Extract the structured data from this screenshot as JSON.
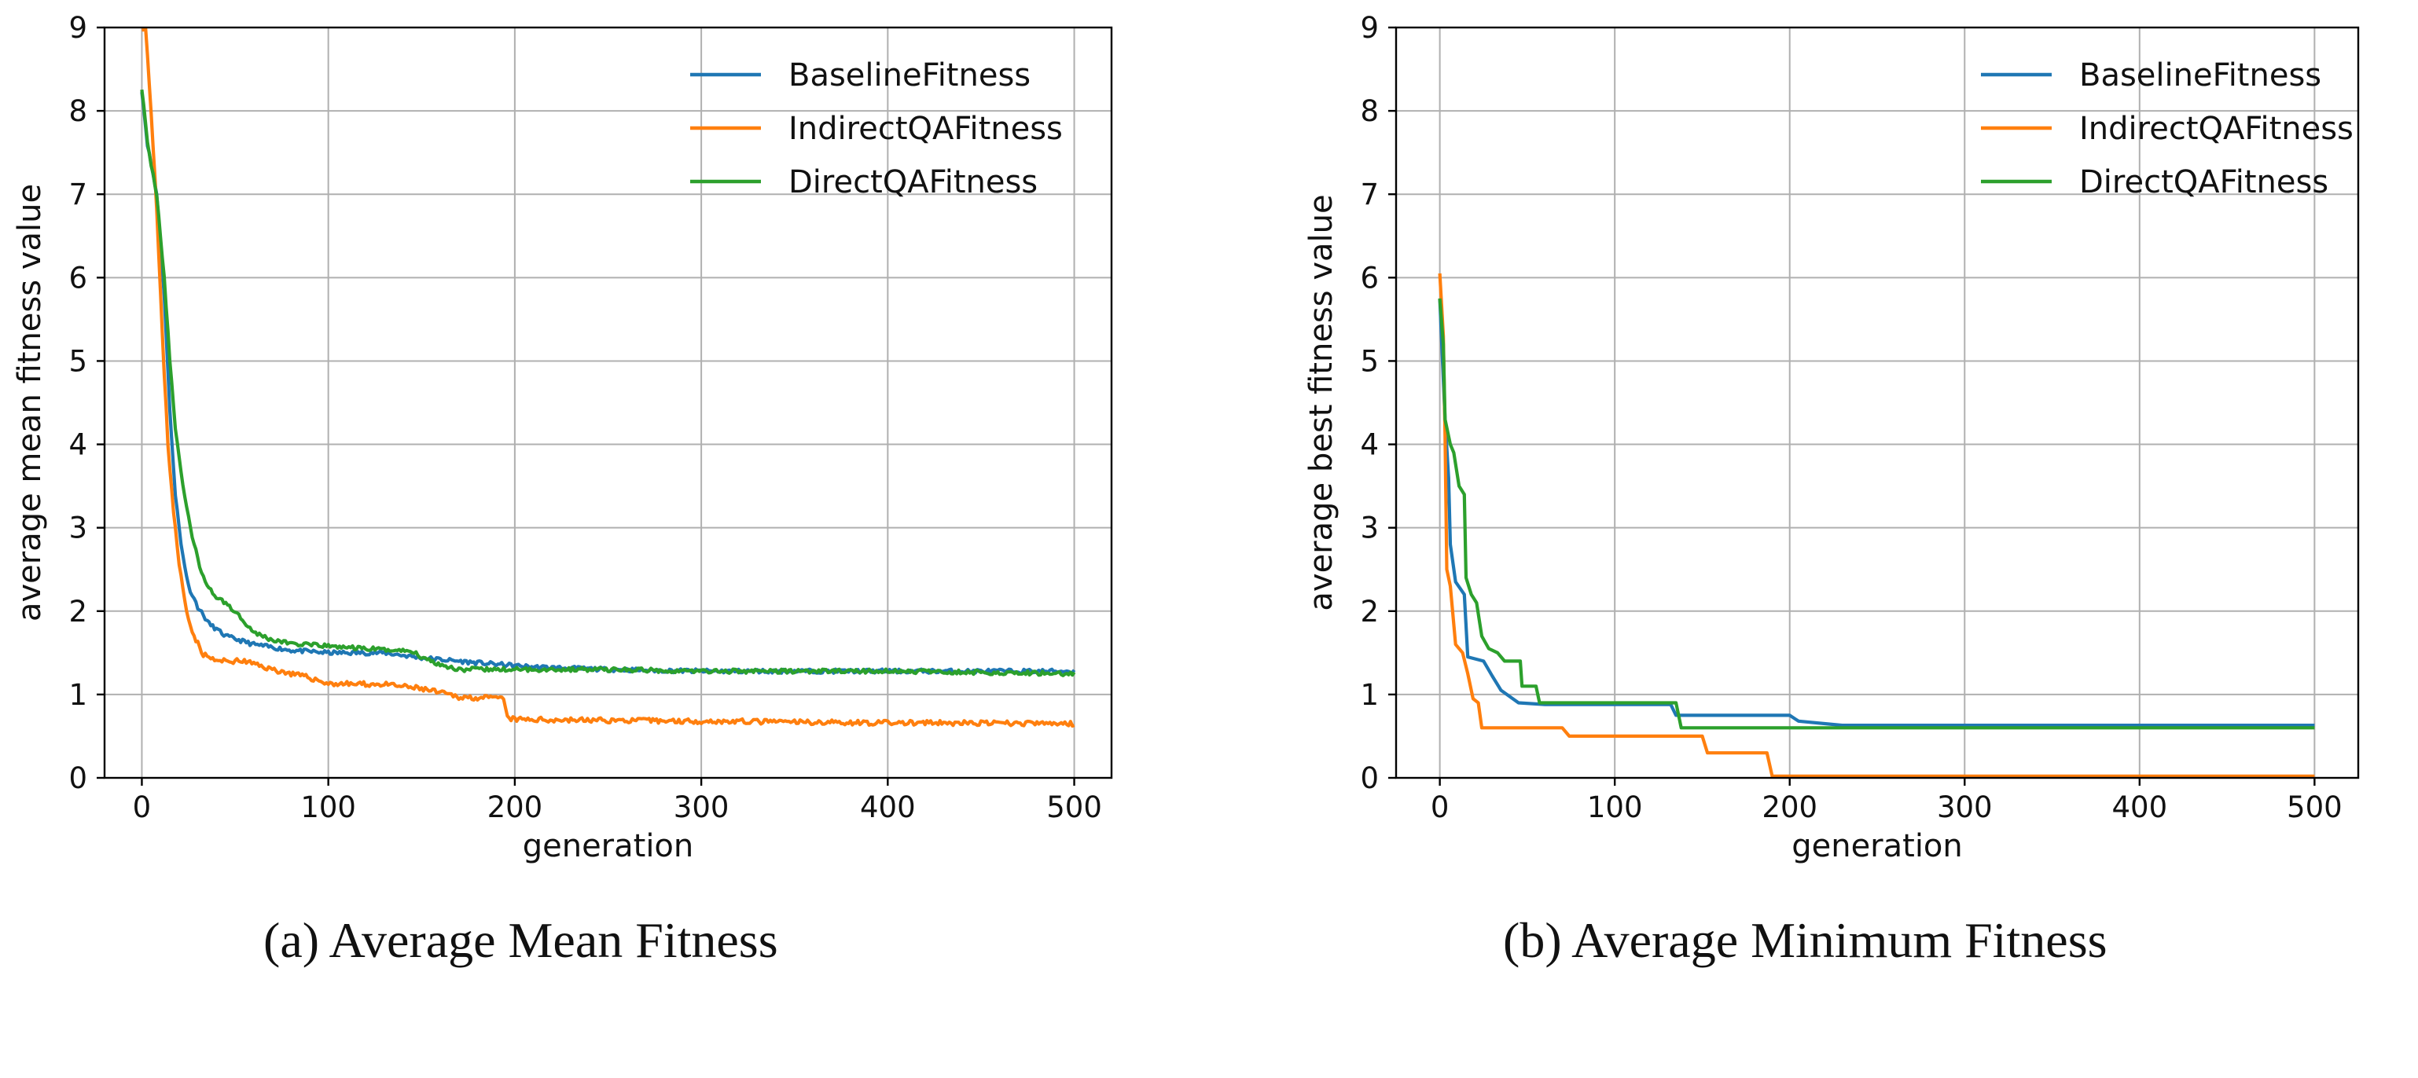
{
  "colors": {
    "baseline": "#1f77b4",
    "indirect": "#ff7f0e",
    "direct": "#2ca02c",
    "grid": "#b0b0b0",
    "axis": "#000000"
  },
  "captions": {
    "a": "(a) Average Mean Fitness",
    "b": "(b) Average Minimum Fitness"
  },
  "chart_data": [
    {
      "type": "line",
      "title": "",
      "xlabel": "generation",
      "ylabel": "average mean fitness value",
      "xlim": [
        -20,
        520
      ],
      "ylim": [
        0,
        9
      ],
      "xticks": [
        0,
        100,
        200,
        300,
        400,
        500
      ],
      "yticks": [
        0,
        1,
        2,
        3,
        4,
        5,
        6,
        7,
        8,
        9
      ],
      "grid": true,
      "legend_position": "upper-right",
      "series": [
        {
          "name": "BaselineFitness",
          "color": "#1f77b4",
          "noise": 0.025,
          "seed": 11,
          "points": [
            [
              0,
              8.25
            ],
            [
              3,
              7.6
            ],
            [
              8,
              7.0
            ],
            [
              12,
              5.8
            ],
            [
              15,
              4.4
            ],
            [
              18,
              3.4
            ],
            [
              21,
              2.8
            ],
            [
              25,
              2.3
            ],
            [
              30,
              2.05
            ],
            [
              36,
              1.85
            ],
            [
              45,
              1.7
            ],
            [
              60,
              1.6
            ],
            [
              80,
              1.53
            ],
            [
              100,
              1.5
            ],
            [
              130,
              1.5
            ],
            [
              150,
              1.44
            ],
            [
              180,
              1.38
            ],
            [
              210,
              1.33
            ],
            [
              250,
              1.3
            ],
            [
              300,
              1.28
            ],
            [
              400,
              1.28
            ],
            [
              500,
              1.28
            ]
          ]
        },
        {
          "name": "IndirectQAFitness",
          "color": "#ff7f0e",
          "noise": 0.03,
          "seed": 23,
          "points": [
            [
              0,
              9.0
            ],
            [
              2,
              9.0
            ],
            [
              5,
              8.0
            ],
            [
              8,
              6.8
            ],
            [
              11,
              5.3
            ],
            [
              14,
              4.0
            ],
            [
              17,
              3.2
            ],
            [
              20,
              2.55
            ],
            [
              24,
              2.0
            ],
            [
              28,
              1.7
            ],
            [
              33,
              1.48
            ],
            [
              40,
              1.4
            ],
            [
              55,
              1.4
            ],
            [
              70,
              1.3
            ],
            [
              90,
              1.2
            ],
            [
              100,
              1.13
            ],
            [
              130,
              1.12
            ],
            [
              150,
              1.07
            ],
            [
              170,
              0.97
            ],
            [
              194,
              0.95
            ],
            [
              196,
              0.72
            ],
            [
              200,
              0.7
            ],
            [
              300,
              0.68
            ],
            [
              400,
              0.66
            ],
            [
              500,
              0.65
            ]
          ]
        },
        {
          "name": "DirectQAFitness",
          "color": "#2ca02c",
          "noise": 0.025,
          "seed": 37,
          "points": [
            [
              0,
              8.28
            ],
            [
              3,
              7.6
            ],
            [
              8,
              7.0
            ],
            [
              12,
              6.0
            ],
            [
              15,
              5.0
            ],
            [
              18,
              4.2
            ],
            [
              22,
              3.5
            ],
            [
              27,
              2.9
            ],
            [
              32,
              2.45
            ],
            [
              38,
              2.2
            ],
            [
              46,
              2.08
            ],
            [
              52,
              1.95
            ],
            [
              60,
              1.75
            ],
            [
              70,
              1.65
            ],
            [
              85,
              1.6
            ],
            [
              100,
              1.58
            ],
            [
              120,
              1.55
            ],
            [
              145,
              1.52
            ],
            [
              150,
              1.45
            ],
            [
              160,
              1.36
            ],
            [
              170,
              1.3
            ],
            [
              200,
              1.3
            ],
            [
              250,
              1.3
            ],
            [
              300,
              1.28
            ],
            [
              400,
              1.28
            ],
            [
              500,
              1.25
            ]
          ]
        }
      ]
    },
    {
      "type": "line",
      "title": "",
      "xlabel": "generation",
      "ylabel": "average best fitness value",
      "xlim": [
        -25,
        525
      ],
      "ylim": [
        0,
        9
      ],
      "xticks": [
        0,
        100,
        200,
        300,
        400,
        500
      ],
      "yticks": [
        0,
        1,
        2,
        3,
        4,
        5,
        6,
        7,
        8,
        9
      ],
      "grid": true,
      "legend_position": "upper-right",
      "series": [
        {
          "name": "BaselineFitness",
          "color": "#1f77b4",
          "noise": 0,
          "seed": 0,
          "points": [
            [
              0,
              5.75
            ],
            [
              3,
              4.3
            ],
            [
              5,
              3.6
            ],
            [
              6,
              2.8
            ],
            [
              9,
              2.35
            ],
            [
              14,
              2.2
            ],
            [
              16,
              1.45
            ],
            [
              25,
              1.4
            ],
            [
              30,
              1.22
            ],
            [
              35,
              1.05
            ],
            [
              45,
              0.9
            ],
            [
              60,
              0.88
            ],
            [
              132,
              0.88
            ],
            [
              135,
              0.75
            ],
            [
              200,
              0.75
            ],
            [
              205,
              0.68
            ],
            [
              230,
              0.63
            ],
            [
              500,
              0.63
            ]
          ]
        },
        {
          "name": "IndirectQAFitness",
          "color": "#ff7f0e",
          "noise": 0,
          "seed": 0,
          "points": [
            [
              0,
              6.05
            ],
            [
              2,
              5.3
            ],
            [
              3,
              4.1
            ],
            [
              4,
              2.5
            ],
            [
              6,
              2.3
            ],
            [
              9,
              1.6
            ],
            [
              13,
              1.5
            ],
            [
              16,
              1.25
            ],
            [
              19,
              0.95
            ],
            [
              22,
              0.9
            ],
            [
              24,
              0.6
            ],
            [
              70,
              0.6
            ],
            [
              74,
              0.5
            ],
            [
              150,
              0.5
            ],
            [
              153,
              0.3
            ],
            [
              187,
              0.3
            ],
            [
              190,
              0.02
            ],
            [
              500,
              0.02
            ]
          ]
        },
        {
          "name": "DirectQAFitness",
          "color": "#2ca02c",
          "noise": 0,
          "seed": 0,
          "points": [
            [
              0,
              5.75
            ],
            [
              2,
              5.2
            ],
            [
              3,
              4.3
            ],
            [
              6,
              4.0
            ],
            [
              8,
              3.9
            ],
            [
              11,
              3.5
            ],
            [
              14,
              3.4
            ],
            [
              15,
              2.4
            ],
            [
              18,
              2.2
            ],
            [
              21,
              2.1
            ],
            [
              24,
              1.7
            ],
            [
              28,
              1.55
            ],
            [
              33,
              1.5
            ],
            [
              37,
              1.4
            ],
            [
              46,
              1.4
            ],
            [
              47,
              1.1
            ],
            [
              55,
              1.1
            ],
            [
              57,
              0.9
            ],
            [
              135,
              0.9
            ],
            [
              138,
              0.6
            ],
            [
              500,
              0.6
            ]
          ]
        }
      ]
    }
  ]
}
